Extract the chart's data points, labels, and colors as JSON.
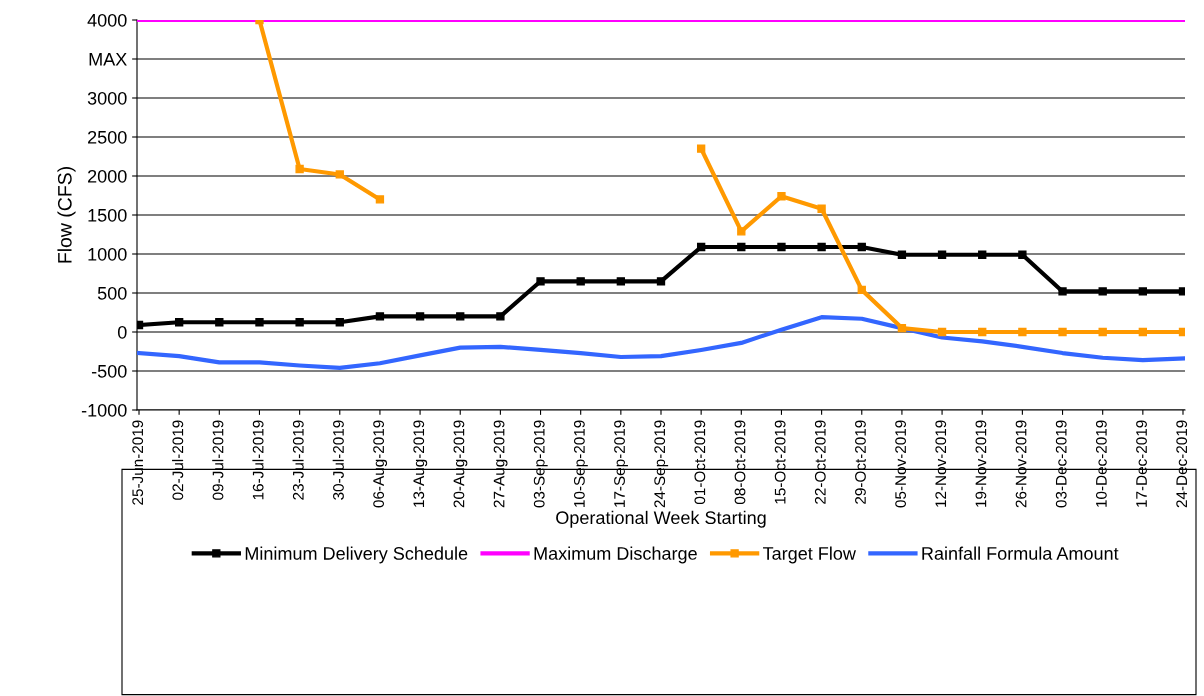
{
  "chart_data": {
    "type": "line",
    "xlabel": "Operational Week Starting",
    "ylabel": "Flow (CFS)",
    "categories": [
      "25-Jun-2019",
      "02-Jul-2019",
      "09-Jul-2019",
      "16-Jul-2019",
      "23-Jul-2019",
      "30-Jul-2019",
      "06-Aug-2019",
      "13-Aug-2019",
      "20-Aug-2019",
      "27-Aug-2019",
      "03-Sep-2019",
      "10-Sep-2019",
      "17-Sep-2019",
      "24-Sep-2019",
      "01-Oct-2019",
      "08-Oct-2019",
      "15-Oct-2019",
      "22-Oct-2019",
      "29-Oct-2019",
      "05-Nov-2019",
      "12-Nov-2019",
      "19-Nov-2019",
      "26-Nov-2019",
      "03-Dec-2019",
      "10-Dec-2019",
      "17-Dec-2019",
      "24-Dec-2019"
    ],
    "series": [
      {
        "name": "Minimum Delivery Schedule",
        "color": "#000000",
        "marker": "square",
        "values": [
          90,
          125,
          125,
          125,
          125,
          125,
          200,
          200,
          200,
          200,
          650,
          650,
          650,
          650,
          1090,
          1090,
          1090,
          1090,
          1090,
          990,
          990,
          990,
          990,
          520,
          520,
          520,
          520
        ]
      },
      {
        "name": "Maximum Discharge",
        "color": "#ff00ff",
        "marker": "none",
        "values": [
          4000,
          4000,
          4000,
          4000,
          4000,
          4000,
          4000,
          4000,
          4000,
          4000,
          4000,
          4000,
          4000,
          4000,
          4000,
          4000,
          4000,
          4000,
          4000,
          4000,
          4000,
          4000,
          4000,
          4000,
          4000,
          4000,
          4000
        ]
      },
      {
        "name": "Target Flow",
        "color": "#ff9900",
        "marker": "square",
        "values": [
          null,
          null,
          null,
          4000,
          2090,
          2020,
          1700,
          null,
          null,
          null,
          null,
          null,
          null,
          null,
          2350,
          1290,
          1740,
          1580,
          540,
          50,
          0,
          0,
          0,
          0,
          0,
          0,
          0
        ]
      },
      {
        "name": "Rainfall Formula Amount",
        "color": "#3366ff",
        "marker": "none",
        "values": [
          -270,
          -310,
          -390,
          -390,
          -430,
          -460,
          -400,
          -300,
          -200,
          -190,
          -230,
          -270,
          -320,
          -310,
          -230,
          -140,
          30,
          190,
          170,
          50,
          -70,
          -120,
          -190,
          -270,
          -330,
          -360,
          -340
        ]
      }
    ],
    "ylim": [
      -1000,
      4000
    ],
    "yticks": [
      -1000,
      -500,
      0,
      500,
      1000,
      1500,
      2000,
      2500,
      3000,
      {
        "value": 3500,
        "label": "MAX"
      },
      4000
    ],
    "grid": "y",
    "legend": "bottom",
    "line_style": "solid"
  }
}
